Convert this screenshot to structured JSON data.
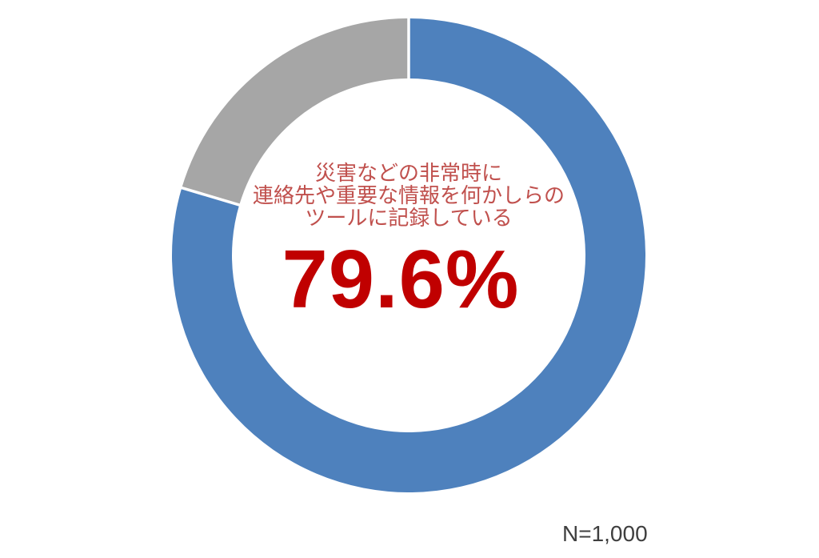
{
  "chart_data": {
    "type": "pie",
    "subtype": "donut",
    "direction": "clockwise",
    "start_angle_deg": 0,
    "legend": "none",
    "segments": [
      {
        "value": 79.6,
        "color": "#4E81BD"
      },
      {
        "value": 20.4,
        "color": "#A6A6A6"
      }
    ],
    "center_text_lines": [
      "災害などの非常時に",
      "連絡先や重要な情報を何かしらの",
      "ツールに記録している"
    ],
    "center_text_color": "#C0504D",
    "center_value_label": "79.6%",
    "center_value_color": "#C00000"
  },
  "annotations": {
    "sample_size": "N=1,000",
    "sample_size_color": "#3F3F3F"
  }
}
